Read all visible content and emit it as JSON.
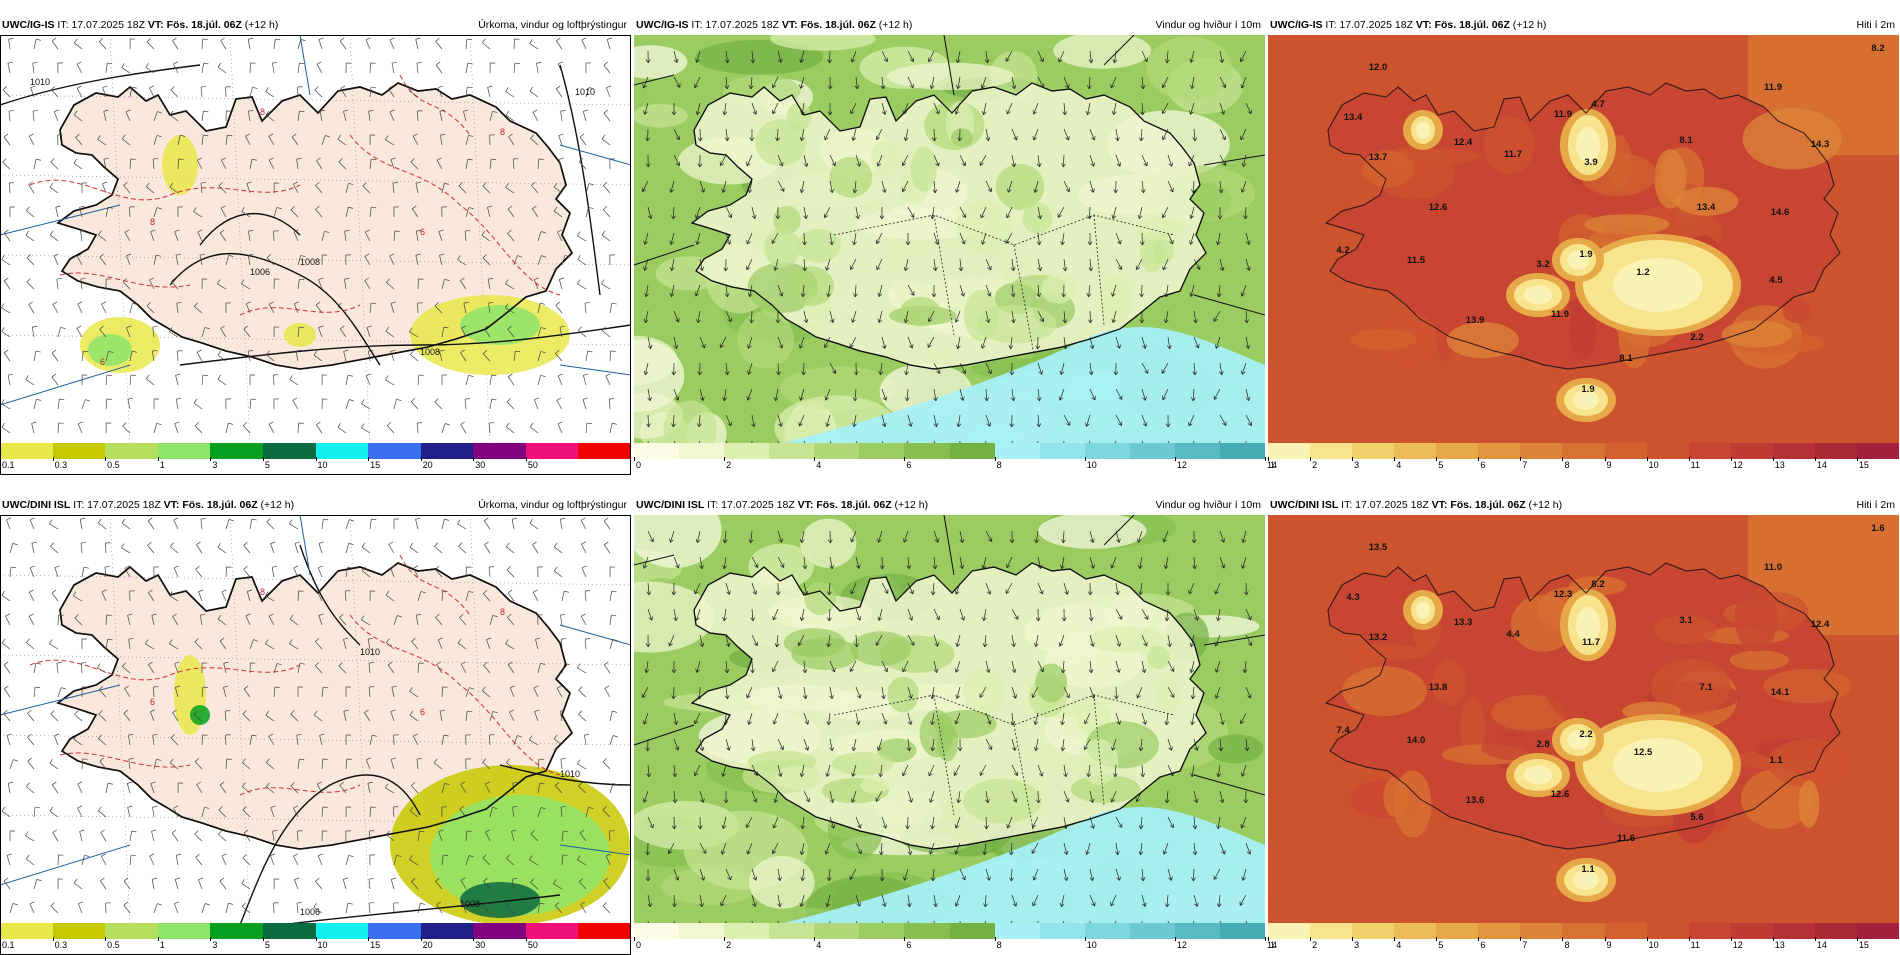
{
  "panels": [
    {
      "model": "UWC/IG-IS",
      "it": "IT: 17.07.2025 18Z",
      "vt": "VT: Fös. 18.júl. 06Z",
      "lead": "(+12 h)",
      "product": "Úrkoma, vindur og loftþrýstingur",
      "kind": "precip",
      "isobars": [
        "1010",
        "1008",
        "1008",
        "1006",
        "1010"
      ],
      "isotherms": [
        "8",
        "8",
        "8",
        "6",
        "6"
      ],
      "labels": []
    },
    {
      "model": "UWC/IG-IS",
      "it": "IT: 17.07.2025 18Z",
      "vt": "VT: Fös. 18.júl. 06Z",
      "lead": "(+12 h)",
      "product": "Vindur og hviður í 10m",
      "kind": "wind",
      "labels": []
    },
    {
      "model": "UWC/IG-IS",
      "it": "IT: 17.07.2025 18Z",
      "vt": "VT: Fös. 18.júl. 06Z",
      "lead": "(+12 h)",
      "product": "Hiti í 2m",
      "kind": "temp",
      "labels": [
        "12.0",
        "13.4",
        "13.7",
        "12.4",
        "11.9",
        "4.7",
        "11.7",
        "3.9",
        "8.1",
        "11.9",
        "14.3",
        "12.6",
        "13.4",
        "14.6",
        "4.2",
        "11.5",
        "3.2",
        "1.9",
        "1.2",
        "4.5",
        "13.9",
        "11.9",
        "2.2",
        "8.1",
        "1.9",
        "8.2"
      ]
    },
    {
      "model": "UWC/DINI ISL",
      "it": "IT: 17.07.2025 18Z",
      "vt": "VT: Fös. 18.júl. 06Z",
      "lead": "(+12 h)",
      "product": "Úrkoma, vindur og loftþrýstingur",
      "kind": "precip",
      "isobars": [
        "1010",
        "1010",
        "1006",
        "1008"
      ],
      "isotherms": [
        "8",
        "8",
        "6",
        "6"
      ],
      "labels": []
    },
    {
      "model": "UWC/DINI ISL",
      "it": "IT: 17.07.2025 18Z",
      "vt": "VT: Fös. 18.júl. 06Z",
      "lead": "(+12 h)",
      "product": "Vindur og hviður í 10m",
      "kind": "wind",
      "labels": []
    },
    {
      "model": "UWC/DINI ISL",
      "it": "IT: 17.07.2025 18Z",
      "vt": "VT: Fös. 18.júl. 06Z",
      "lead": "(+12 h)",
      "product": "Hiti í 2m",
      "kind": "temp",
      "labels": [
        "13.5",
        "4.3",
        "13.2",
        "13.3",
        "12.3",
        "8.2",
        "4.4",
        "11.7",
        "3.1",
        "11.0",
        "12.4",
        "13.8",
        "7.1",
        "14.1",
        "7.4",
        "14.0",
        "2.8",
        "2.2",
        "12.5",
        "1.1",
        "13.6",
        "12.6",
        "5.6",
        "11.6",
        "1.1",
        "1.6"
      ]
    }
  ],
  "colorbars": {
    "precip": {
      "ticks": [
        "0.1",
        "0.3",
        "0.5",
        "1",
        "3",
        "5",
        "10",
        "15",
        "20",
        "30",
        "50"
      ],
      "colors": [
        "#e8e84a",
        "#c8c800",
        "#b6e05c",
        "#8fe46a",
        "#06a020",
        "#0a6a40",
        "#14f0f0",
        "#3a6ef0",
        "#20208a",
        "#800080",
        "#f0107a",
        "#f00000"
      ]
    },
    "wind": {
      "ticks": [
        "0",
        "2",
        "4",
        "6",
        "8",
        "10",
        "12",
        "14"
      ],
      "colors": [
        "#fbfbe6",
        "#f1f7d0",
        "#dcefb0",
        "#c6e493",
        "#b0d878",
        "#9acc62",
        "#86bf50",
        "#74b044",
        "#a6f0f6",
        "#92e4ee",
        "#7ed6e0",
        "#6cc8d2",
        "#58bac4",
        "#46acb6"
      ]
    },
    "temp": {
      "ticks": [
        "1",
        "2",
        "3",
        "4",
        "5",
        "6",
        "7",
        "8",
        "9",
        "10",
        "11",
        "12",
        "13",
        "14",
        "15"
      ],
      "colors": [
        "#fbf3b5",
        "#f7e48d",
        "#f1d16c",
        "#ecbd56",
        "#e7a948",
        "#e29640",
        "#dd8438",
        "#d87232",
        "#d3612f",
        "#cd532f",
        "#c84631",
        "#c03b33",
        "#b63135",
        "#ab2837",
        "#a02139"
      ]
    }
  },
  "colors": {
    "land": "#fae8dc",
    "sea": "#ffffff",
    "isobar": "#111111",
    "isotherm": "#d83030",
    "coast": "#111111"
  }
}
